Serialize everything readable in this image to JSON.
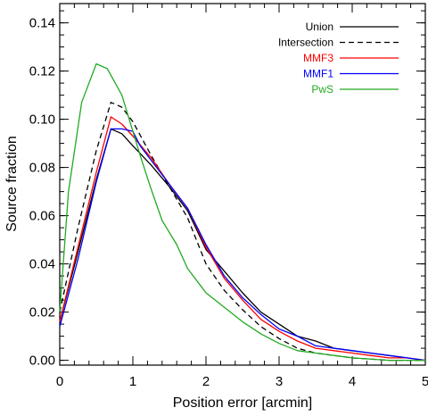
{
  "chart_data": {
    "type": "line",
    "title": "",
    "xlabel": "Position error [arcmin]",
    "ylabel": "Source fraction",
    "xlim": [
      0,
      5
    ],
    "ylim": [
      -0.002,
      0.148
    ],
    "x_ticks": [
      "0",
      "1",
      "2",
      "3",
      "4",
      "5"
    ],
    "y_ticks": [
      "0.00",
      "0.02",
      "0.04",
      "0.06",
      "0.08",
      "0.10",
      "0.12",
      "0.14"
    ],
    "grid": false,
    "legend_position": "top-right",
    "series": [
      {
        "name": "Union",
        "color": "#000000",
        "dash": "solid",
        "points": [
          [
            0,
            0.016
          ],
          [
            0.25,
            0.045
          ],
          [
            0.5,
            0.075
          ],
          [
            0.7,
            0.096
          ],
          [
            0.85,
            0.094
          ],
          [
            1.0,
            0.089
          ],
          [
            1.25,
            0.081
          ],
          [
            1.5,
            0.072
          ],
          [
            1.75,
            0.062
          ],
          [
            2.0,
            0.046
          ],
          [
            2.25,
            0.037
          ],
          [
            2.5,
            0.028
          ],
          [
            2.75,
            0.02
          ],
          [
            3.0,
            0.015
          ],
          [
            3.25,
            0.01
          ],
          [
            3.5,
            0.008
          ],
          [
            3.75,
            0.005
          ],
          [
            4.0,
            0.004
          ],
          [
            4.25,
            0.003
          ],
          [
            4.5,
            0.002
          ],
          [
            4.75,
            0.001
          ],
          [
            5.0,
            0.0
          ]
        ]
      },
      {
        "name": "Intersection",
        "color": "#000000",
        "dash": "dashed",
        "points": [
          [
            0,
            0.02
          ],
          [
            0.25,
            0.055
          ],
          [
            0.5,
            0.087
          ],
          [
            0.7,
            0.107
          ],
          [
            0.85,
            0.105
          ],
          [
            1.0,
            0.099
          ],
          [
            1.25,
            0.085
          ],
          [
            1.5,
            0.072
          ],
          [
            1.75,
            0.059
          ],
          [
            2.0,
            0.04
          ],
          [
            2.25,
            0.029
          ],
          [
            2.5,
            0.021
          ],
          [
            2.75,
            0.014
          ],
          [
            3.0,
            0.009
          ],
          [
            3.25,
            0.005
          ],
          [
            3.5,
            0.003
          ],
          [
            3.75,
            0.002
          ],
          [
            4.0,
            0.001
          ],
          [
            4.5,
            0.0
          ],
          [
            5.0,
            0.0
          ]
        ]
      },
      {
        "name": "MMF3",
        "color": "#ff0000",
        "dash": "solid",
        "points": [
          [
            0,
            0.016
          ],
          [
            0.25,
            0.047
          ],
          [
            0.5,
            0.078
          ],
          [
            0.7,
            0.101
          ],
          [
            0.85,
            0.098
          ],
          [
            1.0,
            0.093
          ],
          [
            1.25,
            0.084
          ],
          [
            1.5,
            0.073
          ],
          [
            1.75,
            0.063
          ],
          [
            2.0,
            0.047
          ],
          [
            2.25,
            0.034
          ],
          [
            2.5,
            0.025
          ],
          [
            2.75,
            0.017
          ],
          [
            3.0,
            0.012
          ],
          [
            3.25,
            0.008
          ],
          [
            3.5,
            0.005
          ],
          [
            3.75,
            0.004
          ],
          [
            4.0,
            0.003
          ],
          [
            4.25,
            0.002
          ],
          [
            4.5,
            0.001
          ],
          [
            4.75,
            0.001
          ],
          [
            5.0,
            0.0
          ]
        ]
      },
      {
        "name": "MMF1",
        "color": "#0000ff",
        "dash": "solid",
        "points": [
          [
            0,
            0.014
          ],
          [
            0.25,
            0.042
          ],
          [
            0.5,
            0.074
          ],
          [
            0.7,
            0.096
          ],
          [
            0.85,
            0.096
          ],
          [
            1.0,
            0.095
          ],
          [
            1.1,
            0.089
          ],
          [
            1.25,
            0.083
          ],
          [
            1.5,
            0.073
          ],
          [
            1.75,
            0.063
          ],
          [
            2.0,
            0.048
          ],
          [
            2.25,
            0.035
          ],
          [
            2.5,
            0.026
          ],
          [
            2.75,
            0.019
          ],
          [
            3.0,
            0.013
          ],
          [
            3.25,
            0.01
          ],
          [
            3.5,
            0.006
          ],
          [
            3.75,
            0.005
          ],
          [
            4.0,
            0.004
          ],
          [
            4.25,
            0.003
          ],
          [
            4.5,
            0.002
          ],
          [
            4.75,
            0.001
          ],
          [
            5.0,
            0.0
          ]
        ]
      },
      {
        "name": "PwS",
        "color": "#22aa22",
        "dash": "solid",
        "points": [
          [
            0,
            0.02
          ],
          [
            0.12,
            0.07
          ],
          [
            0.3,
            0.107
          ],
          [
            0.5,
            0.123
          ],
          [
            0.65,
            0.121
          ],
          [
            0.85,
            0.11
          ],
          [
            1.0,
            0.095
          ],
          [
            1.1,
            0.085
          ],
          [
            1.25,
            0.071
          ],
          [
            1.4,
            0.058
          ],
          [
            1.6,
            0.048
          ],
          [
            1.75,
            0.038
          ],
          [
            1.9,
            0.032
          ],
          [
            2.0,
            0.028
          ],
          [
            2.25,
            0.022
          ],
          [
            2.5,
            0.016
          ],
          [
            2.75,
            0.011
          ],
          [
            3.0,
            0.007
          ],
          [
            3.25,
            0.004
          ],
          [
            3.5,
            0.003
          ],
          [
            3.75,
            0.002
          ],
          [
            4.0,
            0.001
          ],
          [
            4.5,
            0.0
          ],
          [
            5.0,
            0.0
          ]
        ]
      }
    ]
  }
}
